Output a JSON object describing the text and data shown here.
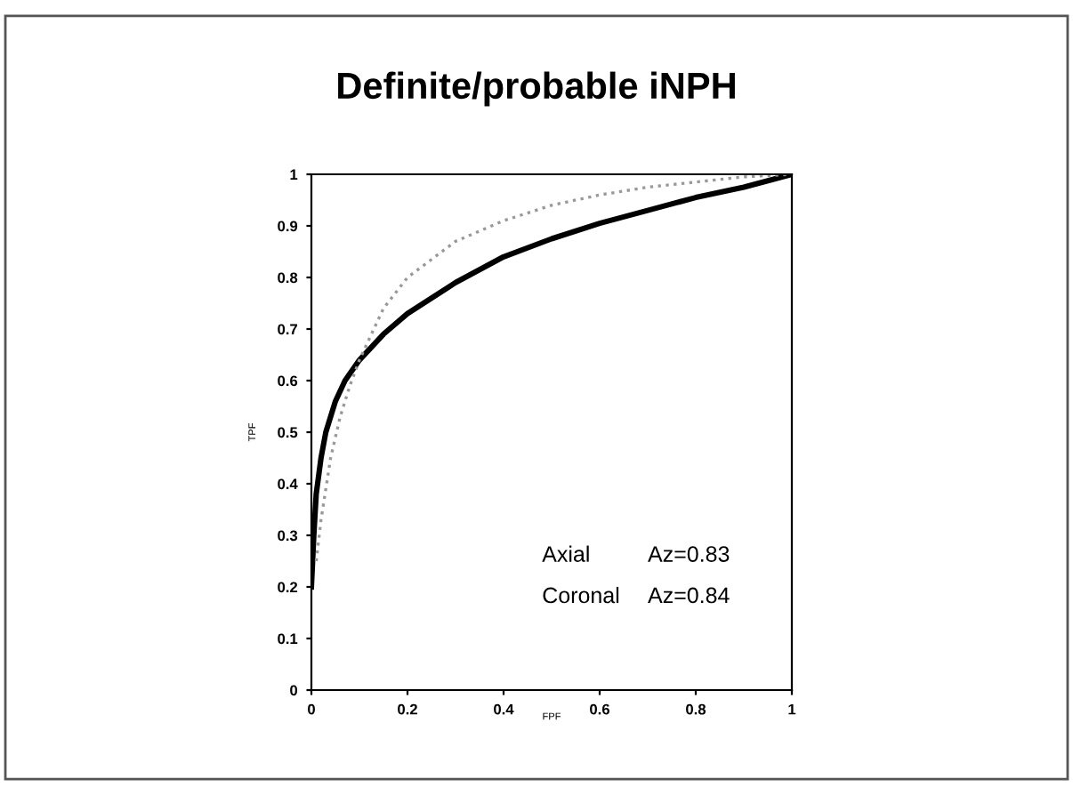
{
  "chart_data": {
    "type": "line",
    "title": "Definite/probable iNPH",
    "xlabel": "FPF",
    "ylabel": "TPF",
    "series": [
      {
        "color": "#000000",
        "line_style": "solid",
        "x": [
          0,
          0.005,
          0.01,
          0.02,
          0.03,
          0.05,
          0.07,
          0.1,
          0.15,
          0.2,
          0.3,
          0.4,
          0.5,
          0.6,
          0.7,
          0.8,
          0.9,
          1
        ],
        "values": [
          0.2,
          0.3,
          0.38,
          0.45,
          0.5,
          0.56,
          0.6,
          0.64,
          0.69,
          0.73,
          0.79,
          0.84,
          0.875,
          0.905,
          0.93,
          0.955,
          0.975,
          1
        ]
      },
      {
        "color": "#999999",
        "line_style": "dotted",
        "x": [
          0.01,
          0.02,
          0.04,
          0.06,
          0.08,
          0.1,
          0.15,
          0.2,
          0.3,
          0.4,
          0.5,
          0.6,
          0.7,
          0.8,
          0.9,
          1
        ],
        "values": [
          0.25,
          0.33,
          0.45,
          0.53,
          0.59,
          0.64,
          0.74,
          0.8,
          0.87,
          0.91,
          0.94,
          0.96,
          0.975,
          0.985,
          0.995,
          1
        ]
      }
    ],
    "annotations": [
      "Axial",
      "Az=0.83",
      "Coronal",
      "Az=0.84"
    ],
    "xlim": [
      0,
      1
    ],
    "ylim": [
      0,
      1
    ],
    "xticks": [
      0,
      0.2,
      0.4,
      0.6,
      0.8,
      1
    ],
    "yticks": [
      0,
      0.1,
      0.2,
      0.3,
      0.4,
      0.5,
      0.6,
      0.7,
      0.8,
      0.9,
      1
    ],
    "grid": false,
    "marker": "none"
  }
}
